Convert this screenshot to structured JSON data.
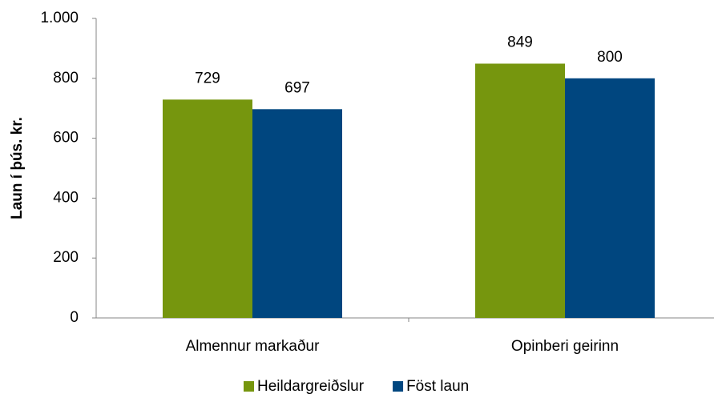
{
  "chart_data": {
    "type": "bar",
    "y_label": "Laun í þús. kr.",
    "categories": [
      "Almennur markaður",
      "Opinberi geirinn"
    ],
    "series": [
      {
        "name": "Heildargreiðslur",
        "color": "#76960e",
        "values": [
          729,
          849
        ]
      },
      {
        "name": "Föst laun",
        "color": "#00467f",
        "values": [
          697,
          800
        ]
      }
    ],
    "ylim": [
      0,
      1000
    ],
    "yticks": [
      0,
      200,
      400,
      600,
      800,
      {
        "value": 1000,
        "label": "1.000"
      }
    ],
    "grid": false,
    "legend": "bottom"
  }
}
